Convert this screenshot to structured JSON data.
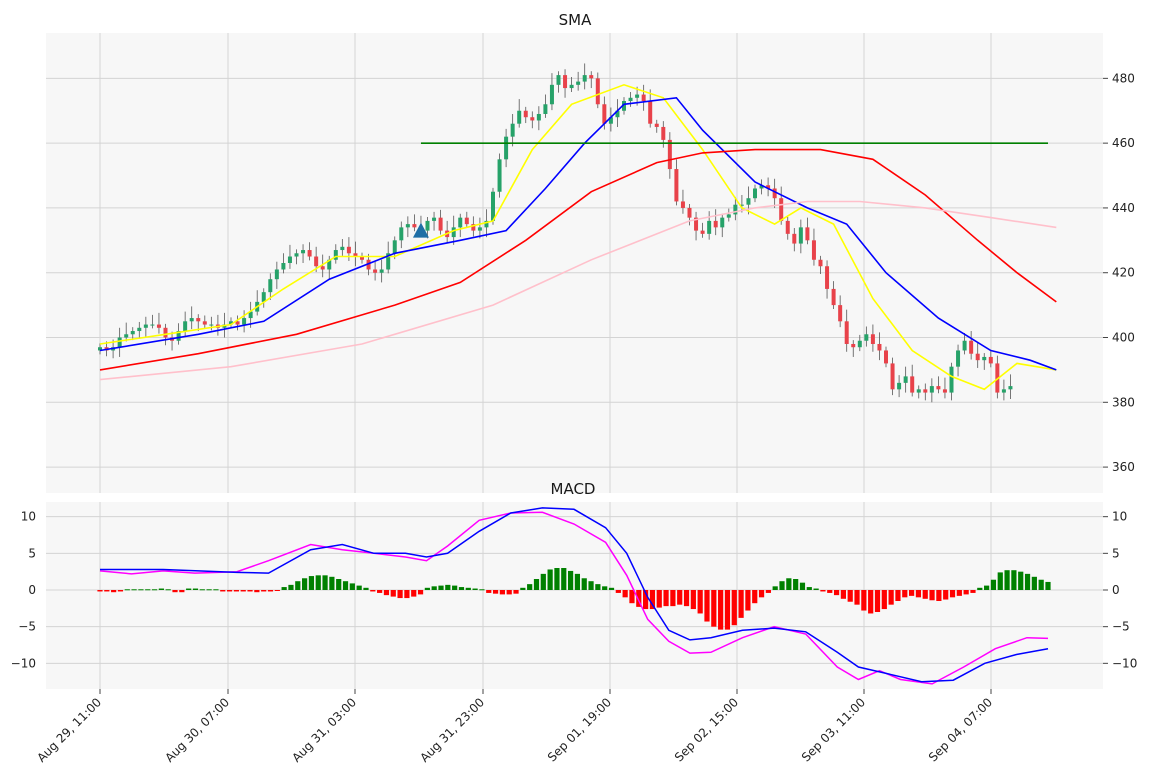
{
  "chart_data": [
    {
      "type": "candlestick",
      "title": "SMA",
      "ylim": [
        352,
        494
      ],
      "y_ticks": [
        "480",
        "460",
        "440",
        "420",
        "400",
        "380",
        "360"
      ],
      "x_ticks": [
        "Aug 29, 11:00",
        "Aug 30, 07:00",
        "Aug 31, 03:00",
        "Aug 31, 23:00",
        "Sep 01, 19:00",
        "Sep 02, 15:00",
        "Sep 03, 11:00",
        "Sep 04, 07:00"
      ],
      "grid": true,
      "candles_close": [
        397,
        396,
        397,
        400,
        401,
        402,
        403,
        404,
        404,
        403,
        400,
        399,
        402,
        405,
        406,
        405,
        404,
        404,
        403,
        404,
        405,
        404,
        406,
        408,
        411,
        414,
        418,
        421,
        423,
        425,
        426,
        427,
        425,
        422,
        421,
        424,
        427,
        428,
        426,
        425,
        424,
        421,
        420,
        421,
        426,
        430,
        434,
        435,
        434,
        433,
        436,
        437,
        433,
        431,
        434,
        437,
        435,
        433,
        434,
        436,
        445,
        455,
        462,
        466,
        470,
        468,
        467,
        469,
        472,
        478,
        481,
        477,
        478,
        479,
        481,
        480,
        472,
        466,
        468,
        470,
        473,
        474,
        475,
        473,
        466,
        465,
        461,
        452,
        442,
        440,
        437,
        433,
        432,
        436,
        434,
        437,
        438,
        441,
        441,
        443,
        446,
        447,
        446,
        443,
        436,
        432,
        429,
        434,
        430,
        424,
        422,
        415,
        410,
        405,
        398,
        397,
        399,
        401,
        398,
        396,
        392,
        384,
        386,
        388,
        383,
        384,
        383,
        385,
        384,
        383,
        391,
        396,
        399,
        395,
        393,
        394,
        392,
        383,
        384,
        385
      ],
      "series": [
        {
          "name": "sma-short",
          "color": "#ffff00",
          "values": [
            [
              0,
              398
            ],
            [
              10,
              401
            ],
            [
              20,
              404
            ],
            [
              28,
              415
            ],
            [
              36,
              425
            ],
            [
              45,
              425
            ],
            [
              54,
              433
            ],
            [
              60,
              436
            ],
            [
              66,
              458
            ],
            [
              72,
              472
            ],
            [
              80,
              478
            ],
            [
              86,
              474
            ],
            [
              92,
              458
            ],
            [
              98,
              440
            ],
            [
              103,
              435
            ],
            [
              107,
              440
            ],
            [
              112,
              435
            ],
            [
              118,
              412
            ],
            [
              124,
              396
            ],
            [
              130,
              388
            ],
            [
              135,
              384
            ],
            [
              140,
              392
            ],
            [
              146,
              390
            ]
          ]
        },
        {
          "name": "sma-mid",
          "color": "#0000ff",
          "values": [
            [
              0,
              396
            ],
            [
              15,
              401
            ],
            [
              25,
              405
            ],
            [
              35,
              418
            ],
            [
              45,
              426
            ],
            [
              55,
              430
            ],
            [
              62,
              433
            ],
            [
              68,
              446
            ],
            [
              74,
              460
            ],
            [
              80,
              472
            ],
            [
              88,
              474
            ],
            [
              92,
              464
            ],
            [
              100,
              448
            ],
            [
              108,
              440
            ],
            [
              114,
              435
            ],
            [
              120,
              420
            ],
            [
              128,
              406
            ],
            [
              136,
              396
            ],
            [
              142,
              393
            ],
            [
              146,
              390
            ]
          ]
        },
        {
          "name": "sma-long",
          "color": "#ff0000",
          "values": [
            [
              0,
              390
            ],
            [
              15,
              395
            ],
            [
              30,
              401
            ],
            [
              45,
              410
            ],
            [
              55,
              417
            ],
            [
              65,
              430
            ],
            [
              75,
              445
            ],
            [
              85,
              454
            ],
            [
              92,
              457
            ],
            [
              100,
              458
            ],
            [
              110,
              458
            ],
            [
              118,
              455
            ],
            [
              126,
              444
            ],
            [
              134,
              430
            ],
            [
              140,
              420
            ],
            [
              146,
              411
            ]
          ]
        },
        {
          "name": "sma-longest",
          "color": "#ffc0cb",
          "values": [
            [
              0,
              387
            ],
            [
              20,
              391
            ],
            [
              40,
              398
            ],
            [
              60,
              410
            ],
            [
              75,
              424
            ],
            [
              90,
              436
            ],
            [
              100,
              440
            ],
            [
              108,
              442
            ],
            [
              116,
              442
            ],
            [
              126,
              440
            ],
            [
              136,
              437
            ],
            [
              146,
              434
            ]
          ]
        }
      ],
      "hline": {
        "y": 460,
        "from_index": 49,
        "color": "#008000"
      },
      "marker": {
        "index": 49,
        "y": 433,
        "shape": "triangle-up",
        "color": "#1f6fa6"
      }
    },
    {
      "type": "macd",
      "title": "MACD",
      "ylim": [
        -13.5,
        12
      ],
      "y_ticks_left": [
        "10",
        "5",
        "0",
        "−5",
        "−10"
      ],
      "y_ticks_right": [
        "10",
        "5",
        "0",
        "−5",
        "−10"
      ],
      "grid": true,
      "macd_line": {
        "color": "#ff00ff",
        "values": [
          [
            0,
            2.6
          ],
          [
            6,
            2.2
          ],
          [
            12,
            2.6
          ],
          [
            18,
            2.3
          ],
          [
            26,
            2.5
          ],
          [
            32,
            4.0
          ],
          [
            40,
            6.2
          ],
          [
            46,
            5.5
          ],
          [
            52,
            5.0
          ],
          [
            58,
            4.5
          ],
          [
            62,
            4.0
          ],
          [
            66,
            6.0
          ],
          [
            72,
            9.5
          ],
          [
            78,
            10.5
          ],
          [
            84,
            10.6
          ],
          [
            90,
            9.0
          ],
          [
            96,
            6.5
          ],
          [
            100,
            2.0
          ],
          [
            104,
            -4.0
          ],
          [
            108,
            -7.0
          ],
          [
            112,
            -8.6
          ],
          [
            116,
            -8.5
          ],
          [
            122,
            -6.5
          ],
          [
            128,
            -5.0
          ],
          [
            134,
            -6.0
          ],
          [
            140,
            -10.5
          ],
          [
            144,
            -12.2
          ],
          [
            148,
            -11.0
          ],
          [
            152,
            -12.2
          ],
          [
            158,
            -12.8
          ],
          [
            164,
            -10.5
          ],
          [
            170,
            -8.0
          ],
          [
            176,
            -6.5
          ],
          [
            180,
            -6.6
          ]
        ]
      },
      "signal_line": {
        "color": "#0000ff",
        "values": [
          [
            0,
            2.8
          ],
          [
            12,
            2.8
          ],
          [
            26,
            2.4
          ],
          [
            32,
            2.3
          ],
          [
            40,
            5.5
          ],
          [
            46,
            6.2
          ],
          [
            52,
            5.0
          ],
          [
            58,
            5.0
          ],
          [
            62,
            4.5
          ],
          [
            66,
            5.0
          ],
          [
            72,
            8.0
          ],
          [
            78,
            10.5
          ],
          [
            84,
            11.2
          ],
          [
            90,
            11.0
          ],
          [
            96,
            8.5
          ],
          [
            100,
            5.0
          ],
          [
            104,
            -1.0
          ],
          [
            108,
            -5.5
          ],
          [
            112,
            -6.8
          ],
          [
            116,
            -6.5
          ],
          [
            122,
            -5.5
          ],
          [
            128,
            -5.2
          ],
          [
            134,
            -5.7
          ],
          [
            140,
            -8.5
          ],
          [
            144,
            -10.5
          ],
          [
            150,
            -11.5
          ],
          [
            156,
            -12.5
          ],
          [
            162,
            -12.3
          ],
          [
            168,
            -10.0
          ],
          [
            174,
            -8.8
          ],
          [
            180,
            -8.0
          ]
        ]
      },
      "histogram": [
        -0.2,
        -0.2,
        -0.3,
        -0.2,
        0.1,
        0.1,
        0.1,
        0.1,
        0.1,
        0.2,
        0.1,
        -0.3,
        -0.3,
        0.2,
        0.2,
        0.1,
        0.1,
        0.1,
        -0.2,
        -0.2,
        -0.2,
        -0.2,
        -0.2,
        -0.3,
        -0.2,
        -0.2,
        -0.1,
        0.4,
        0.7,
        1.2,
        1.6,
        1.9,
        2.0,
        2.0,
        1.8,
        1.5,
        1.2,
        0.9,
        0.6,
        0.3,
        -0.2,
        -0.4,
        -0.7,
        -0.9,
        -1.1,
        -1.1,
        -0.9,
        -0.6,
        0.3,
        0.5,
        0.6,
        0.7,
        0.6,
        0.4,
        0.3,
        0.2,
        0.1,
        -0.4,
        -0.5,
        -0.6,
        -0.6,
        -0.5,
        0.3,
        0.8,
        1.5,
        2.2,
        2.8,
        3.0,
        3.0,
        2.6,
        2.2,
        1.6,
        1.2,
        0.8,
        0.5,
        0.3,
        -0.4,
        -1.0,
        -1.8,
        -2.3,
        -2.6,
        -2.6,
        -2.4,
        -2.2,
        -2.2,
        -2.0,
        -2.2,
        -2.6,
        -3.2,
        -4.3,
        -5.0,
        -5.4,
        -5.4,
        -4.8,
        -3.8,
        -2.8,
        -1.8,
        -1.0,
        -0.4,
        0.5,
        1.2,
        1.6,
        1.5,
        1.0,
        0.4,
        0.2,
        -0.2,
        -0.4,
        -0.7,
        -1.2,
        -1.6,
        -2.0,
        -2.8,
        -3.2,
        -3.0,
        -2.6,
        -2.0,
        -1.5,
        -1.0,
        -0.8,
        -1.0,
        -1.2,
        -1.4,
        -1.5,
        -1.3,
        -1.0,
        -0.8,
        -0.6,
        -0.4,
        0.3,
        0.6,
        1.4,
        2.4,
        2.7,
        2.7,
        2.5,
        2.2,
        1.8,
        1.4,
        1.1
      ],
      "positive_color": "#008000",
      "negative_color": "#ff0000"
    }
  ]
}
